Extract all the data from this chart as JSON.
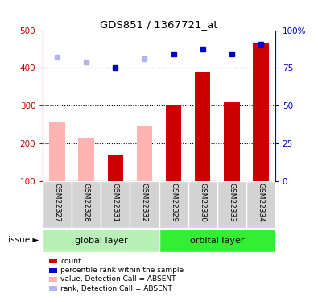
{
  "title": "GDS851 / 1367721_at",
  "samples": [
    "GSM22327",
    "GSM22328",
    "GSM22331",
    "GSM22332",
    "GSM22329",
    "GSM22330",
    "GSM22333",
    "GSM22334"
  ],
  "count_values": [
    null,
    null,
    170,
    null,
    300,
    390,
    310,
    465
  ],
  "count_absent": [
    258,
    215,
    null,
    248,
    null,
    null,
    null,
    null
  ],
  "rank_values": [
    null,
    null,
    400,
    null,
    438,
    450,
    438,
    463
  ],
  "rank_absent": [
    428,
    415,
    null,
    425,
    null,
    null,
    null,
    null
  ],
  "ylim_left": [
    100,
    500
  ],
  "ylim_right": [
    0,
    100
  ],
  "left_ticks": [
    100,
    200,
    300,
    400,
    500
  ],
  "right_ticks": [
    0,
    25,
    50,
    75,
    100
  ],
  "right_tick_labels": [
    "0",
    "25",
    "50",
    "75",
    "100%"
  ],
  "color_count": "#cc0000",
  "color_rank": "#0000cc",
  "color_absent_bar": "#ffb3b3",
  "color_absent_dot": "#b3b3ee",
  "color_group1_bg": "#b8f0b8",
  "color_group2_bg": "#33ee33",
  "color_sample_box": "#d3d3d3",
  "legend": [
    {
      "color": "#cc0000",
      "label": "count"
    },
    {
      "color": "#0000cc",
      "label": "percentile rank within the sample"
    },
    {
      "color": "#ffb3b3",
      "label": "value, Detection Call = ABSENT"
    },
    {
      "color": "#b3b3ee",
      "label": "rank, Detection Call = ABSENT"
    }
  ],
  "group1_label": "global layer",
  "group2_label": "orbital layer",
  "tissue_label": "tissue"
}
